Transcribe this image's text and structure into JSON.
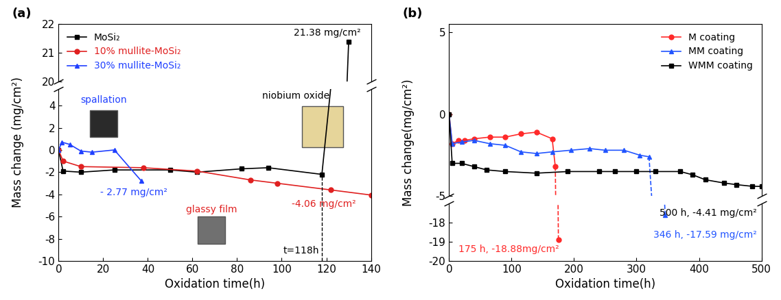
{
  "chart_data": [
    {
      "type": "line",
      "panel_label": "(a)",
      "x_label": "Oxidation time(h)",
      "y_label": "Mass change (mg/cm²)",
      "xlim": [
        0,
        140
      ],
      "xticks": [
        0,
        20,
        40,
        60,
        80,
        100,
        120,
        140
      ],
      "ylim": [
        [
          -10,
          5.5
        ],
        [
          20,
          22
        ]
      ],
      "yticks": [
        -10,
        -8,
        -6,
        -4,
        -2,
        0,
        2,
        4,
        20,
        21,
        22
      ],
      "legend": "upper left",
      "series": [
        {
          "name": "MoSi₂",
          "color": "#000000",
          "marker": "square",
          "line_style": "solid",
          "x": [
            0,
            2,
            10,
            25,
            50,
            62,
            82,
            94,
            118,
            130
          ],
          "values": [
            0,
            -1.9,
            -2.0,
            -1.8,
            -1.8,
            -2.0,
            -1.7,
            -1.6,
            -2.2,
            21.38
          ]
        },
        {
          "name": "10% mullite-MoSi₂",
          "color": "#e02020",
          "marker": "circle",
          "line_style": "solid",
          "x": [
            0,
            2,
            10,
            38,
            62,
            86,
            98,
            122,
            140
          ],
          "values": [
            0,
            -1.0,
            -1.5,
            -1.6,
            -1.9,
            -2.7,
            -3.0,
            -3.6,
            -4.06
          ]
        },
        {
          "name": "30% mullite-MoSi₂",
          "color": "#2040ff",
          "marker": "triangle",
          "line_style": "solid",
          "x": [
            0,
            1.5,
            5,
            10,
            15,
            25,
            37
          ],
          "values": [
            0,
            0.7,
            0.5,
            -0.1,
            -0.2,
            0.0,
            -2.77
          ]
        }
      ],
      "reference_line": {
        "x": 118,
        "label": "t=118h"
      },
      "annotations": [
        {
          "text": "21.38 mg/cm²",
          "color": "#000000"
        },
        {
          "text": "spallation",
          "color": "#2040ff"
        },
        {
          "text": "niobium oxide",
          "color": "#000000"
        },
        {
          "text": "glassy film",
          "color": "#e02020"
        },
        {
          "text": "- 2.77 mg/cm²",
          "color": "#2040ff"
        },
        {
          "text": "-4.06 mg/cm²",
          "color": "#e02020"
        }
      ]
    },
    {
      "type": "line",
      "panel_label": "(b)",
      "x_label": "Oxidation time(h)",
      "y_label": "Mass change(mg/cm²)",
      "xlim": [
        0,
        500
      ],
      "xticks": [
        0,
        100,
        200,
        300,
        400,
        500
      ],
      "ylim": [
        [
          -20,
          -17
        ],
        [
          -5,
          5.5
        ]
      ],
      "yticks": [
        -20,
        -19,
        -18,
        -5,
        0,
        5
      ],
      "legend": "upper right",
      "series": [
        {
          "name": "M coating",
          "color": "#ff2a2a",
          "marker": "circle",
          "line_style": "dashed_end",
          "x": [
            0,
            5,
            15,
            25,
            40,
            65,
            90,
            115,
            140,
            165,
            170,
            175
          ],
          "values": [
            0,
            -1.8,
            -1.6,
            -1.6,
            -1.5,
            -1.4,
            -1.4,
            -1.2,
            -1.1,
            -1.5,
            -3.2,
            -18.88
          ]
        },
        {
          "name": "MM coating",
          "color": "#2255ff",
          "marker": "triangle",
          "line_style": "dashed_end",
          "x": [
            0,
            5,
            20,
            40,
            65,
            90,
            115,
            140,
            165,
            195,
            225,
            250,
            280,
            305,
            320,
            346
          ],
          "values": [
            0,
            -1.8,
            -1.7,
            -1.6,
            -1.8,
            -1.9,
            -2.3,
            -2.4,
            -2.3,
            -2.2,
            -2.1,
            -2.2,
            -2.2,
            -2.5,
            -2.6,
            -17.59
          ]
        },
        {
          "name": "WMM coating",
          "color": "#000000",
          "marker": "square",
          "line_style": "solid",
          "x": [
            0,
            5,
            20,
            40,
            60,
            90,
            140,
            190,
            240,
            265,
            300,
            330,
            370,
            390,
            410,
            440,
            460,
            485,
            500
          ],
          "values": [
            0,
            -3.0,
            -3.0,
            -3.2,
            -3.4,
            -3.5,
            -3.6,
            -3.5,
            -3.5,
            -3.5,
            -3.5,
            -3.5,
            -3.5,
            -3.7,
            -4.0,
            -4.2,
            -4.3,
            -4.4,
            -4.41
          ]
        }
      ],
      "annotations": [
        {
          "text": "500 h, -4.41 mg/cm²",
          "color": "#000000"
        },
        {
          "text": "346 h, -17.59 mg/cm²",
          "color": "#2255ff"
        },
        {
          "text": "175 h, -18.88mg/cm²",
          "color": "#ff2a2a"
        }
      ]
    }
  ]
}
